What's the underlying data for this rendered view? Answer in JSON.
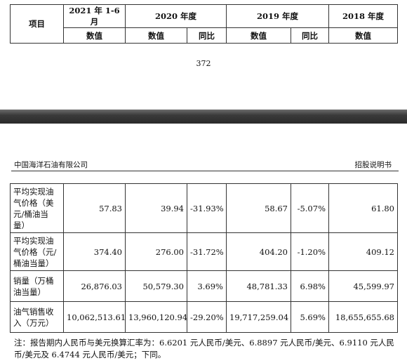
{
  "top_table": {
    "item_header": "项目",
    "periods": [
      "2021 年 1-6 月",
      "2020 年度",
      "2019 年度",
      "2018 年度"
    ],
    "sub_headers": [
      "数值",
      "数值",
      "同比",
      "数值",
      "同比",
      "数值"
    ]
  },
  "page_number": "372",
  "header": {
    "company": "中国海洋石油有限公司",
    "document": "招股说明书"
  },
  "rows": [
    {
      "label_lines": [
        "平均实现油",
        "气价格（美",
        "元/桶油当",
        "量）"
      ],
      "values": [
        "57.83",
        "39.94",
        "-31.93%",
        "58.67",
        "-5.07%",
        "61.80"
      ]
    },
    {
      "label_lines": [
        "平均实现油",
        "气价格（元/",
        "桶油当量）"
      ],
      "values": [
        "374.40",
        "276.00",
        "-31.72%",
        "404.20",
        "-1.20%",
        "409.12"
      ]
    },
    {
      "label_lines": [
        "销量（万桶",
        "油当量）"
      ],
      "values": [
        "26,876.03",
        "50,579.30",
        "3.69%",
        "48,781.33",
        "6.98%",
        "45,599.97"
      ]
    },
    {
      "label_lines": [
        "油气销售收",
        "入（万元）"
      ],
      "values": [
        "10,062,513.61",
        "13,960,120.94",
        "-29.20%",
        "19,717,259.04",
        "5.69%",
        "18,655,655.68"
      ]
    }
  ],
  "note": "注：报告期内人民币与美元换算汇率为：6.6201 元人民币/美元、6.8897 元人民币/美元、6.9110 元人民币/美元及 6.4744 元人民币/美元；下同。"
}
